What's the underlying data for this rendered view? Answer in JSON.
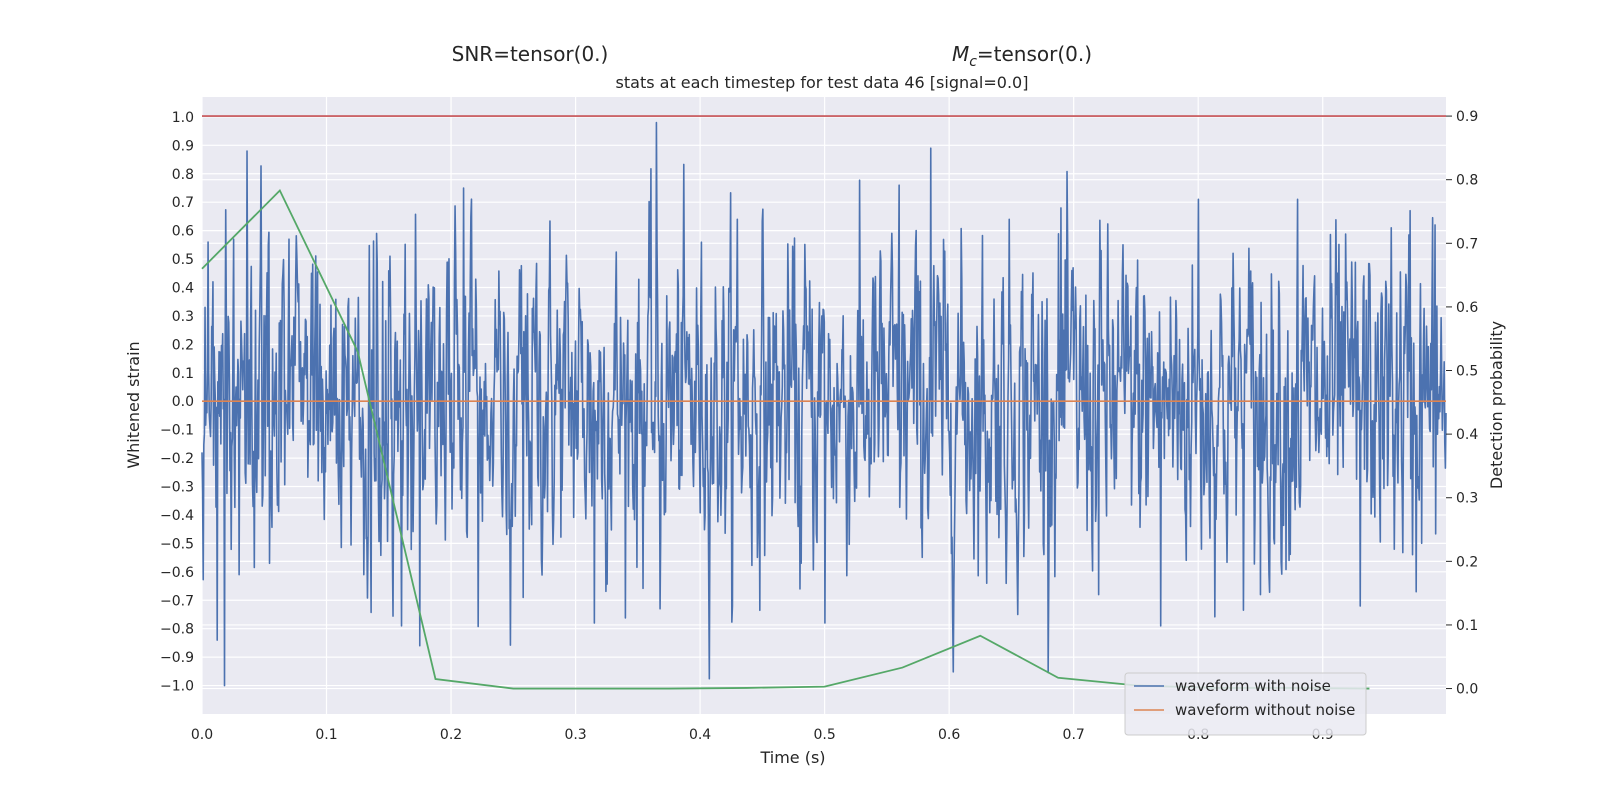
{
  "chart_data": {
    "type": "line",
    "header_left": "SNR=tensor(0.)",
    "header_right_symbol": "M",
    "header_right_subscript": "c",
    "header_right_rest": "=tensor(0.)",
    "title": "stats at each timestep for test data 46 [signal=0.0]",
    "xlabel": "Time (s)",
    "ylabel_left": "Whitened strain",
    "ylabel_right": "Detection probability",
    "xlim": [
      0.0,
      0.999
    ],
    "ylim_left": [
      -1.1,
      1.07
    ],
    "ylim_right": [
      -0.04,
      0.93
    ],
    "x_ticks": [
      "0.0",
      "0.1",
      "0.2",
      "0.3",
      "0.4",
      "0.5",
      "0.6",
      "0.7",
      "0.8",
      "0.9"
    ],
    "y_ticks_left": [
      "1.0",
      "0.9",
      "0.8",
      "0.7",
      "0.6",
      "0.5",
      "0.4",
      "0.3",
      "0.2",
      "0.1",
      "0.0",
      "−0.1",
      "−0.2",
      "−0.3",
      "−0.4",
      "−0.5",
      "−0.6",
      "−0.7",
      "−0.8",
      "−0.9",
      "−1.0"
    ],
    "y_ticks_right": [
      "0.9",
      "0.8",
      "0.7",
      "0.6",
      "0.5",
      "0.4",
      "0.3",
      "0.2",
      "0.1",
      "0.0"
    ],
    "grid": true,
    "legend_placement": "lower-right",
    "series": [
      {
        "name": "waveform with noise",
        "axis": "left",
        "color": "#4c72b0",
        "sample_rate_hz": 2048,
        "noise_seed": 46,
        "noise_std": 0.3,
        "anchor_points": [
          [
            0.0,
            -0.18
          ],
          [
            0.005,
            0.56
          ],
          [
            0.009,
            0.42
          ],
          [
            0.012,
            -0.84
          ],
          [
            0.018,
            -1.0
          ],
          [
            0.03,
            -0.61
          ],
          [
            0.036,
            0.88
          ],
          [
            0.054,
            -0.57
          ],
          [
            0.07,
            0.57
          ],
          [
            0.088,
            0.45
          ],
          [
            0.13,
            -0.61
          ],
          [
            0.14,
            0.59
          ],
          [
            0.16,
            -0.79
          ],
          [
            0.175,
            -0.86
          ],
          [
            0.21,
            0.75
          ],
          [
            0.258,
            -0.69
          ],
          [
            0.315,
            -0.78
          ],
          [
            0.365,
            0.98
          ],
          [
            0.368,
            -0.73
          ],
          [
            0.43,
            0.64
          ],
          [
            0.48,
            -0.66
          ],
          [
            0.5,
            -0.78
          ],
          [
            0.56,
            0.76
          ],
          [
            0.585,
            0.89
          ],
          [
            0.63,
            -0.64
          ],
          [
            0.655,
            -0.75
          ],
          [
            0.69,
            0.68
          ],
          [
            0.72,
            -0.68
          ],
          [
            0.77,
            -0.79
          ],
          [
            0.8,
            0.71
          ],
          [
            0.85,
            -0.68
          ],
          [
            0.88,
            0.71
          ],
          [
            0.93,
            -0.72
          ],
          [
            0.955,
            0.61
          ],
          [
            0.97,
            0.67
          ],
          [
            0.975,
            -0.67
          ],
          [
            0.99,
            0.62
          ]
        ]
      },
      {
        "name": "waveform without noise",
        "axis": "left",
        "color": "#dd8452",
        "constant": 0.0
      },
      {
        "name": "",
        "axis": "right",
        "color": "#55a868",
        "x": [
          0.0,
          0.0625,
          0.125,
          0.1875,
          0.25,
          0.3125,
          0.375,
          0.4375,
          0.5,
          0.5625,
          0.625,
          0.6875,
          0.75,
          0.8125,
          0.875,
          0.9375
        ],
        "y": [
          0.66,
          0.783,
          0.53,
          0.015,
          0.0,
          0.0,
          0.0,
          0.001,
          0.003,
          0.033,
          0.083,
          0.017,
          0.005,
          0.001,
          0.001,
          0.0
        ]
      },
      {
        "name": "",
        "axis": "right",
        "color": "#c44e52",
        "constant": 0.9
      }
    ]
  }
}
